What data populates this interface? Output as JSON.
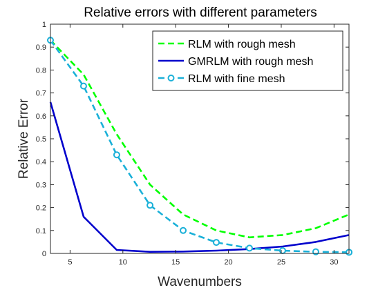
{
  "chart_data": {
    "type": "line",
    "title": "Relative errors with different parameters",
    "xlabel": "Wavenumbers",
    "ylabel": "Relative Error",
    "xlim": [
      3.14159,
      31.4159
    ],
    "ylim": [
      0,
      1
    ],
    "xticks": [
      5,
      10,
      15,
      20,
      25,
      30
    ],
    "yticks": [
      0,
      0.1,
      0.2,
      0.3,
      0.4,
      0.5,
      0.6,
      0.7,
      0.8,
      0.9,
      1
    ],
    "grid": false,
    "legend_position": "top-right",
    "x": [
      3.14,
      6.28,
      9.42,
      12.57,
      15.71,
      18.85,
      21.99,
      25.13,
      28.27,
      31.42
    ],
    "series": [
      {
        "name": "RLM with rough mesh",
        "color": "#00ff00",
        "style": "dashed",
        "marker": "none",
        "values": [
          0.93,
          0.78,
          0.52,
          0.3,
          0.17,
          0.1,
          0.07,
          0.08,
          0.11,
          0.17
        ]
      },
      {
        "name": "GMRLM with rough mesh",
        "color": "#0000cc",
        "style": "solid",
        "marker": "none",
        "values": [
          0.66,
          0.16,
          0.015,
          0.007,
          0.008,
          0.012,
          0.019,
          0.03,
          0.05,
          0.08
        ]
      },
      {
        "name": "RLM with fine mesh",
        "color": "#1ab0d8",
        "style": "dashed",
        "marker": "circle",
        "values": [
          0.93,
          0.73,
          0.43,
          0.21,
          0.1,
          0.048,
          0.023,
          0.012,
          0.007,
          0.005
        ]
      }
    ]
  }
}
